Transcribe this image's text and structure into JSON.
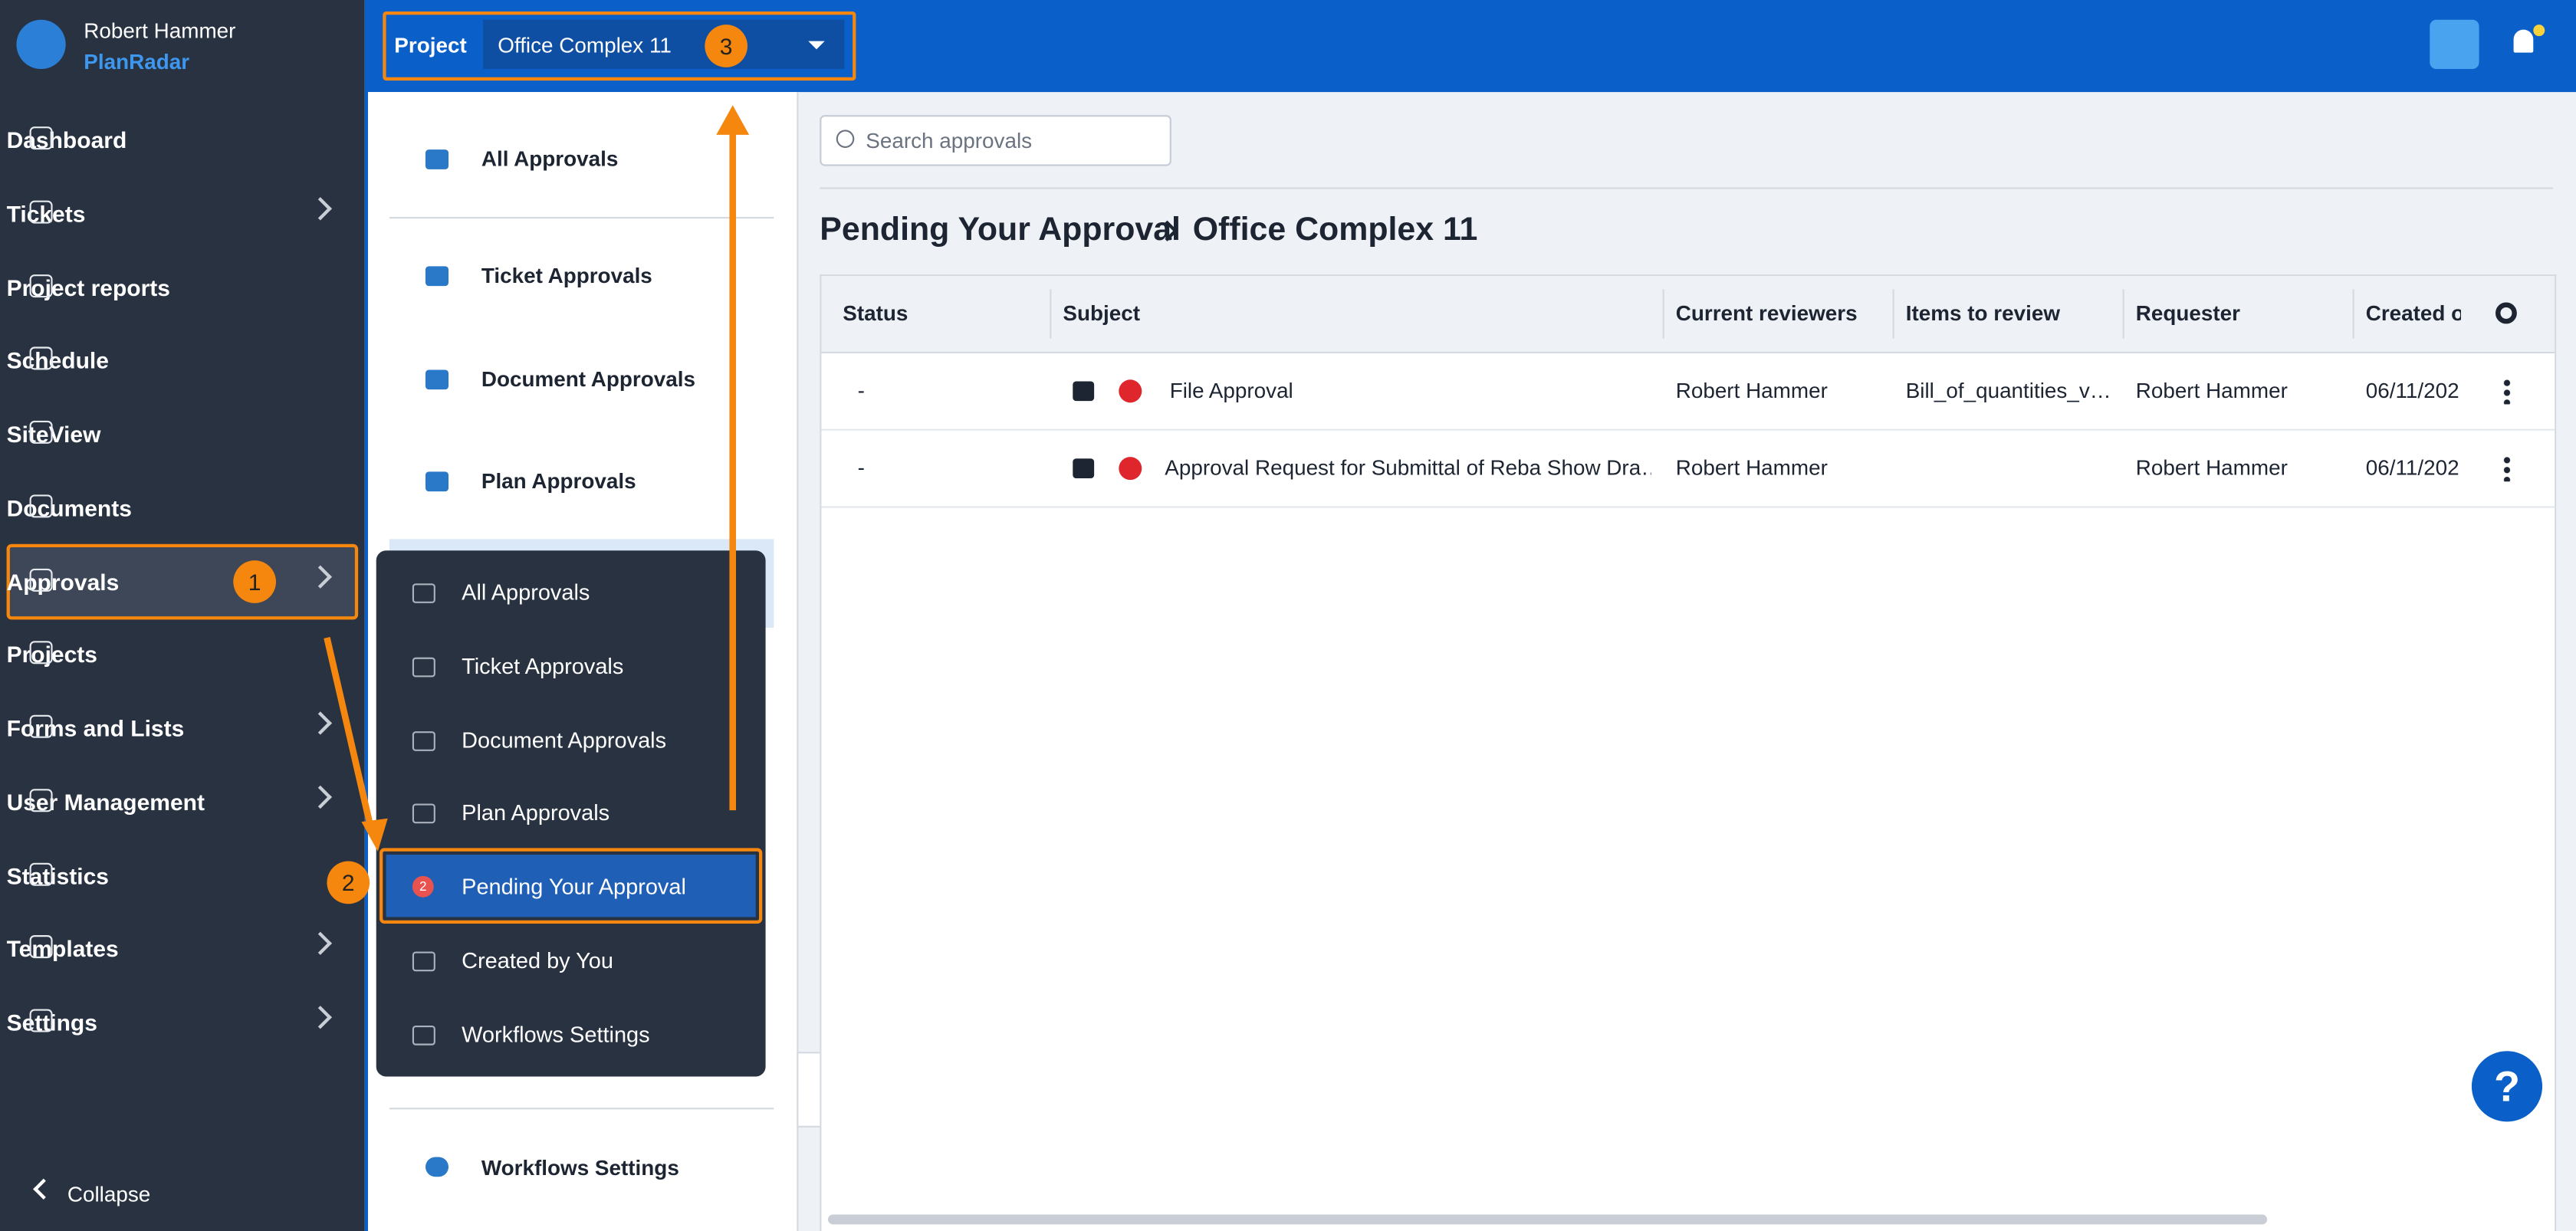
{
  "user": {
    "name": "Robert Hammer",
    "brand": "PlanRadar"
  },
  "sidebar": {
    "items": [
      {
        "label": "Dashboard",
        "chevron": false
      },
      {
        "label": "Tickets",
        "chevron": true
      },
      {
        "label": "Project reports",
        "chevron": false
      },
      {
        "label": "Schedule",
        "chevron": false
      },
      {
        "label": "SiteView",
        "chevron": false
      },
      {
        "label": "Documents",
        "chevron": false
      },
      {
        "label": "Approvals",
        "chevron": true
      },
      {
        "label": "Projects",
        "chevron": false
      },
      {
        "label": "Forms and Lists",
        "chevron": true
      },
      {
        "label": "User Management",
        "chevron": true
      },
      {
        "label": "Statistics",
        "chevron": false
      },
      {
        "label": "Templates",
        "chevron": true
      },
      {
        "label": "Settings",
        "chevron": true
      }
    ],
    "collapse": "Collapse"
  },
  "topbar": {
    "project_label": "Project",
    "project_value": "Office Complex 11"
  },
  "annotations": [
    "1",
    "2",
    "3"
  ],
  "panel": {
    "items": [
      "All Approvals",
      "Ticket Approvals",
      "Document Approvals",
      "Plan Approvals"
    ],
    "footer": "Workflows Settings"
  },
  "submenu": {
    "items": [
      "All Approvals",
      "Ticket Approvals",
      "Document Approvals",
      "Plan Approvals",
      "Pending Your Approval",
      "Created by You",
      "Workflows Settings"
    ],
    "badge": "2"
  },
  "search": {
    "placeholder": "Search approvals"
  },
  "breadcrumb": [
    "Pending Your Approval",
    "Office Complex 11"
  ],
  "table": {
    "headers": [
      "Status",
      "Subject",
      "Current reviewers",
      "Items to review",
      "Requester",
      "Created o"
    ],
    "rows": [
      [
        "-",
        "File Approval",
        "Robert Hammer",
        "Bill_of_quantities_v…",
        "Robert Hammer",
        "06/11/202"
      ],
      [
        "-",
        "Approval Request for Submittal of Reba Show Dra…",
        "Robert Hammer",
        "",
        "Robert Hammer",
        "06/11/202"
      ]
    ]
  }
}
